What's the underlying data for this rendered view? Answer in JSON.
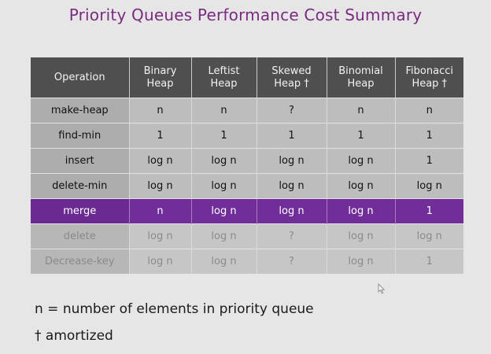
{
  "slide": {
    "title": "Priority Queues Performance Cost Summary",
    "notes": [
      "n = number of elements in priority queue",
      "† amortized"
    ],
    "colors": {
      "title": "#7a2a80",
      "header_bg": "#4f4f4f",
      "highlight_bg": "#712e98"
    }
  },
  "table": {
    "headers": [
      [
        "Operation"
      ],
      [
        "Binary",
        "Heap"
      ],
      [
        "Leftist",
        "Heap"
      ],
      [
        "Skewed",
        "Heap †"
      ],
      [
        "Binomial",
        "Heap"
      ],
      [
        "Fibonacci",
        "Heap †"
      ]
    ],
    "rows": [
      {
        "style": "normal",
        "cells": [
          "make-heap",
          "n",
          "n",
          "?",
          "n",
          "n"
        ]
      },
      {
        "style": "normal",
        "cells": [
          "find-min",
          "1",
          "1",
          "1",
          "1",
          "1"
        ]
      },
      {
        "style": "normal",
        "cells": [
          "insert",
          "log n",
          "log n",
          "log n",
          "log n",
          "1"
        ]
      },
      {
        "style": "normal",
        "cells": [
          "delete-min",
          "log n",
          "log n",
          "log n",
          "log n",
          "log n"
        ]
      },
      {
        "style": "highlight",
        "cells": [
          "merge",
          "n",
          "log n",
          "log n",
          "log n",
          "1"
        ]
      },
      {
        "style": "faded",
        "cells": [
          "delete",
          "log n",
          "log n",
          "?",
          "log n",
          "log n"
        ]
      },
      {
        "style": "faded",
        "cells": [
          "Decrease-key",
          "log n",
          "log n",
          "?",
          "log n",
          "1"
        ]
      }
    ]
  }
}
